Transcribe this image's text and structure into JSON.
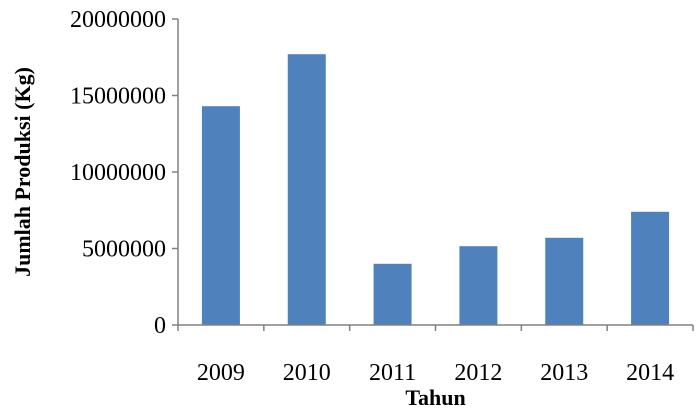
{
  "chart_data": {
    "type": "bar",
    "title": "",
    "xlabel": "Tahun",
    "ylabel": "Jumlah Produksi (Kg)",
    "categories": [
      "2009",
      "2010",
      "2011",
      "2012",
      "2013",
      "2014"
    ],
    "values": [
      14300000,
      17700000,
      4000000,
      5150000,
      5700000,
      7400000
    ],
    "ylim": [
      0,
      20000000
    ],
    "yticks": [
      "0",
      "5000000",
      "10000000",
      "15000000",
      "20000000"
    ],
    "ytick_values": [
      0,
      5000000,
      10000000,
      15000000,
      20000000
    ],
    "bar_color": "#4f81bd",
    "grid": false,
    "legend": "none"
  }
}
